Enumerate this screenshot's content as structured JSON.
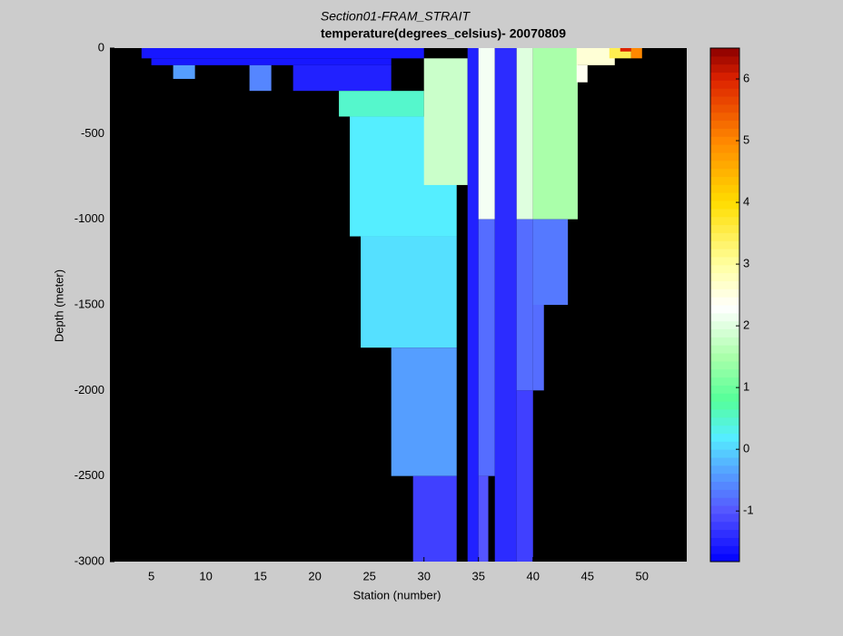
{
  "chart_data": {
    "type": "heatmap",
    "title": "Section01-FRAM_STRAIT",
    "subtitle": "temperature(degrees_celsius)- 20070809",
    "x_label": "Station (number)",
    "y_label": "Depth (meter)",
    "xlim": [
      1.2,
      54.1
    ],
    "xticks": [
      5,
      10,
      15,
      20,
      25,
      30,
      35,
      40,
      45,
      50
    ],
    "ylim": [
      -3000,
      0
    ],
    "yticks": [
      -3000,
      -2500,
      -2000,
      -1500,
      -1000,
      -500,
      0
    ],
    "background": "#000000",
    "clim": [
      -1.82,
      6.5
    ],
    "cticks": [
      -1,
      0,
      1,
      2,
      3,
      4,
      5,
      6
    ],
    "colormap": [
      [
        -1.82,
        "#0000ff"
      ],
      [
        -1,
        "#5555ff"
      ],
      [
        -0.3,
        "#55aaff"
      ],
      [
        0.2,
        "#55eeff"
      ],
      [
        0.8,
        "#55ff99"
      ],
      [
        1.5,
        "#aaffaa"
      ],
      [
        2.3,
        "#ffffff"
      ],
      [
        3,
        "#ffffa0"
      ],
      [
        4,
        "#ffdd00"
      ],
      [
        5,
        "#ff8800"
      ],
      [
        6,
        "#dd2200"
      ],
      [
        6.5,
        "#8b0000"
      ]
    ],
    "cells": [
      [
        4.1,
        30,
        -60,
        0,
        -1.6
      ],
      [
        5,
        27,
        -100,
        -60,
        -1.6
      ],
      [
        7,
        9,
        -180,
        -100,
        -0.4
      ],
      [
        14,
        16,
        -250,
        -100,
        -0.6
      ],
      [
        18,
        27,
        -250,
        -100,
        -1.5
      ],
      [
        22.2,
        30,
        -400,
        -250,
        0.5
      ],
      [
        23.2,
        33,
        -1100,
        -400,
        0.2
      ],
      [
        24.2,
        33,
        -1750,
        -1100,
        0.1
      ],
      [
        27,
        33,
        -2500,
        -1750,
        -0.4
      ],
      [
        29,
        33,
        -3000,
        -2500,
        -1.2
      ],
      [
        30,
        34,
        -800,
        -60,
        1.8
      ],
      [
        34,
        35,
        -3000,
        0,
        -1.5
      ],
      [
        35,
        36.5,
        -1000,
        0,
        2.2
      ],
      [
        35,
        36.5,
        -2500,
        -1000,
        -0.8
      ],
      [
        35,
        35.9,
        -3000,
        -2500,
        -1.0
      ],
      [
        36.5,
        38.5,
        -3000,
        0,
        -1.4
      ],
      [
        38.5,
        40,
        -1000,
        0,
        2.0
      ],
      [
        38.5,
        40,
        -2000,
        -1000,
        -0.8
      ],
      [
        38.5,
        40,
        -3000,
        -2000,
        -1.2
      ],
      [
        40,
        44.1,
        -1000,
        0,
        1.5
      ],
      [
        40,
        43.2,
        -1500,
        -1000,
        -0.7
      ],
      [
        40,
        41,
        -2000,
        -1500,
        -0.8
      ],
      [
        44,
        47.5,
        -100,
        0,
        2.6
      ],
      [
        44,
        45,
        -200,
        -100,
        2.4
      ],
      [
        47,
        49,
        -60,
        0,
        3.5
      ],
      [
        49,
        50,
        -60,
        0,
        5
      ],
      [
        48,
        49,
        -20,
        0,
        6
      ]
    ]
  }
}
